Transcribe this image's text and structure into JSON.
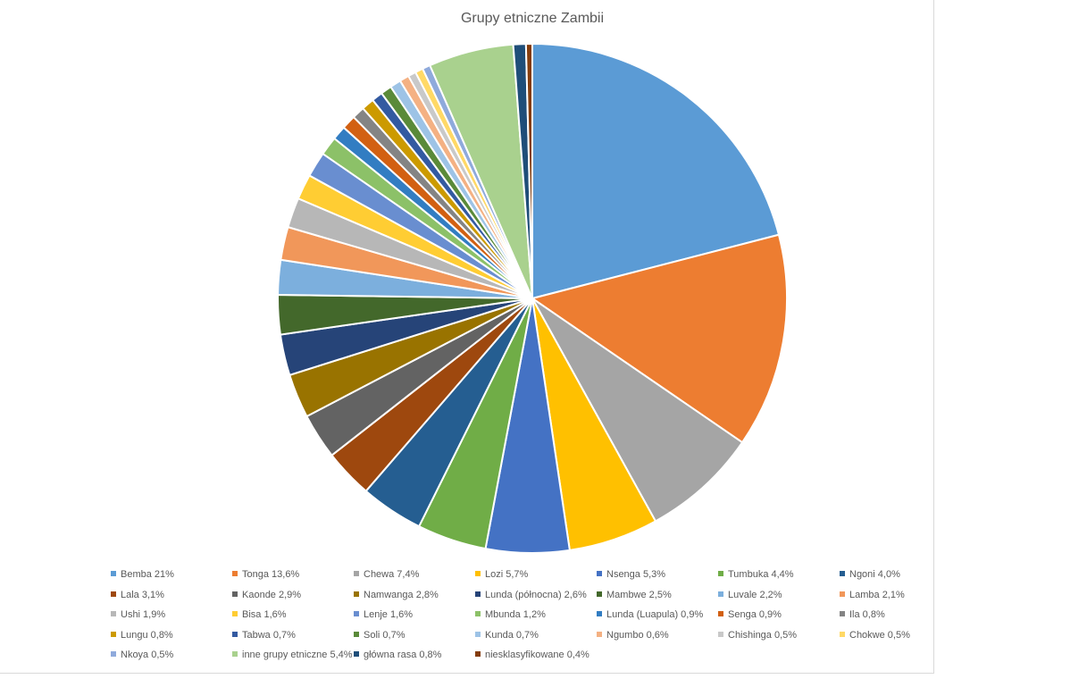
{
  "chart_data": {
    "type": "pie",
    "title": "Grupy etniczne Zambii",
    "legend_position": "bottom",
    "slices": [
      {
        "label": "Bemba 21%",
        "value": 21.0,
        "color": "#5b9bd5"
      },
      {
        "label": "Tonga 13,6%",
        "value": 13.6,
        "color": "#ed7d31"
      },
      {
        "label": "Chewa 7,4%",
        "value": 7.4,
        "color": "#a5a5a5"
      },
      {
        "label": "Lozi 5,7%",
        "value": 5.7,
        "color": "#ffc000"
      },
      {
        "label": "Nsenga 5,3%",
        "value": 5.3,
        "color": "#4472c4"
      },
      {
        "label": "Tumbuka 4,4%",
        "value": 4.4,
        "color": "#70ad47"
      },
      {
        "label": "Ngoni 4,0%",
        "value": 4.0,
        "color": "#255e91"
      },
      {
        "label": "Lala 3,1%",
        "value": 3.1,
        "color": "#9e480e"
      },
      {
        "label": "Kaonde 2,9%",
        "value": 2.9,
        "color": "#636363"
      },
      {
        "label": "Namwanga 2,8%",
        "value": 2.8,
        "color": "#997300"
      },
      {
        "label": "Lunda (północna) 2,6%",
        "value": 2.6,
        "color": "#264478"
      },
      {
        "label": "Mambwe 2,5%",
        "value": 2.5,
        "color": "#43682b"
      },
      {
        "label": "Luvale 2,2%",
        "value": 2.2,
        "color": "#7cafdd"
      },
      {
        "label": "Lamba 2,1%",
        "value": 2.1,
        "color": "#f1975a"
      },
      {
        "label": "Ushi 1,9%",
        "value": 1.9,
        "color": "#b7b7b7"
      },
      {
        "label": "Bisa 1,6%",
        "value": 1.6,
        "color": "#ffcd33"
      },
      {
        "label": "Lenje 1,6%",
        "value": 1.6,
        "color": "#698ed0"
      },
      {
        "label": "Mbunda 1,2%",
        "value": 1.2,
        "color": "#8cc168"
      },
      {
        "label": "Lunda (Luapula) 0,9%",
        "value": 0.9,
        "color": "#327dc2"
      },
      {
        "label": "Senga 0,9%",
        "value": 0.9,
        "color": "#d26012"
      },
      {
        "label": "Ila 0,8%",
        "value": 0.8,
        "color": "#848484"
      },
      {
        "label": "Lungu 0,8%",
        "value": 0.8,
        "color": "#cc9a00"
      },
      {
        "label": "Tabwa 0,7%",
        "value": 0.7,
        "color": "#335aa1"
      },
      {
        "label": "Soli 0,7%",
        "value": 0.7,
        "color": "#5a8a39"
      },
      {
        "label": "Kunda 0,7%",
        "value": 0.7,
        "color": "#9dc3e6"
      },
      {
        "label": "Ngumbo 0,6%",
        "value": 0.6,
        "color": "#f4b183"
      },
      {
        "label": "Chishinga 0,5%",
        "value": 0.5,
        "color": "#c9c9c9"
      },
      {
        "label": "Chokwe 0,5%",
        "value": 0.5,
        "color": "#ffd966"
      },
      {
        "label": "Nkoya 0,5%",
        "value": 0.5,
        "color": "#8faadc"
      },
      {
        "label": "inne grupy etniczne 5,4%",
        "value": 5.4,
        "color": "#a9d18e"
      },
      {
        "label": "główna rasa 0,8%",
        "value": 0.8,
        "color": "#1f4e79"
      },
      {
        "label": "niesklasyfikowane 0,4%",
        "value": 0.4,
        "color": "#843c0c"
      }
    ]
  }
}
